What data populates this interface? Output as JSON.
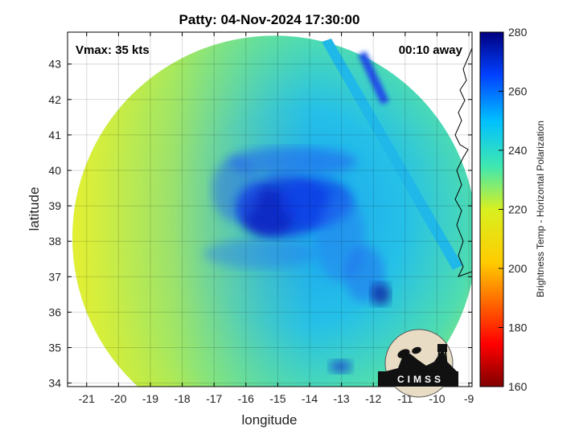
{
  "chart_data": {
    "type": "heatmap",
    "title": "Patty: 04-Nov-2024 17:30:00",
    "xlabel": "longitude",
    "ylabel": "latitude",
    "xlim": [
      -21.6,
      -8.9
    ],
    "ylim": [
      33.9,
      43.9
    ],
    "xticks": [
      -21,
      -20,
      -19,
      -18,
      -17,
      -16,
      -15,
      -14,
      -13,
      -12,
      -11,
      -10,
      -9
    ],
    "yticks": [
      34,
      35,
      36,
      37,
      38,
      39,
      40,
      41,
      42,
      43
    ],
    "grid": true,
    "annotations": {
      "vmax": "Vmax: 35 kts",
      "time_away": "00:10 away"
    },
    "colorbar": {
      "label": "Brightness Temp - Horizontal Polarization",
      "min": 160,
      "max": 280,
      "ticks": [
        160,
        180,
        200,
        220,
        240,
        260,
        280
      ],
      "colormap": "jet"
    },
    "swath": {
      "center": [
        -15.1,
        38.1
      ],
      "radius_deg_lat": 5.7
    },
    "storm_center": [
      -14.8,
      39.0
    ],
    "logo_text": "CIMSS"
  }
}
